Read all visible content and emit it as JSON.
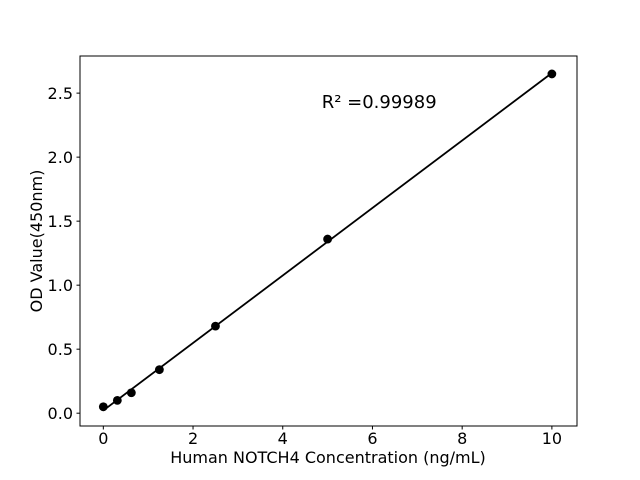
{
  "figure": {
    "background": "#ffffff",
    "axis_color": "#000000"
  },
  "chart_data": {
    "type": "scatter",
    "title": "",
    "xlabel": "Human NOTCH4 Concentration (ng/mL)",
    "ylabel": "OD Value(450nm)",
    "annotation": "R² =0.99989",
    "annotation_xy": [
      6.15,
      2.43
    ],
    "x": [
      0,
      0.3125,
      0.625,
      1.25,
      2.5,
      5,
      10
    ],
    "y": [
      0.05,
      0.1,
      0.16,
      0.34,
      0.68,
      1.36,
      2.65
    ],
    "fit_line": true,
    "xticks": [
      0,
      2,
      4,
      6,
      8,
      10
    ],
    "xtick_labels": [
      "0",
      "2",
      "4",
      "6",
      "8",
      "10"
    ],
    "yticks": [
      0,
      0.5,
      1.0,
      1.5,
      2.0,
      2.5
    ],
    "ytick_labels": [
      "0.0",
      "0.5",
      "1.0",
      "1.5",
      "2.0",
      "2.5"
    ],
    "xlim": [
      -0.52,
      10.56
    ],
    "ylim": [
      -0.1,
      2.79
    ],
    "grid": false,
    "legend": null,
    "marker_color": "#000000",
    "line_color": "#000000"
  }
}
